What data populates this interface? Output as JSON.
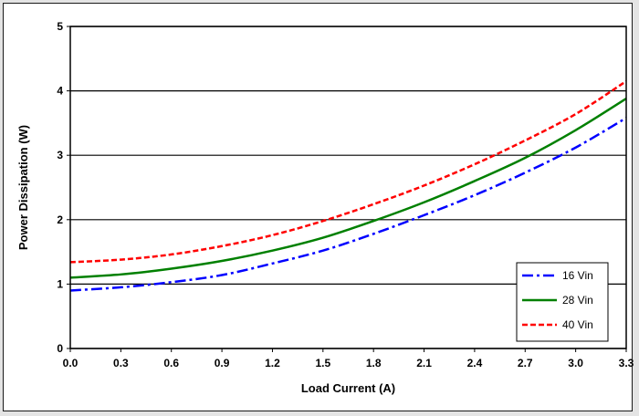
{
  "colors": {
    "series_16": "#0000ff",
    "series_28": "#008000",
    "series_40": "#ff0000",
    "gridline": "#000000",
    "background": "#ffffff"
  },
  "chart_data": {
    "type": "line",
    "title": "",
    "xlabel": "Load Current (A)",
    "ylabel": "Power Dissipation (W)",
    "xlim": [
      0.0,
      3.3
    ],
    "ylim": [
      0,
      5
    ],
    "x_ticks": [
      "0.0",
      "0.3",
      "0.6",
      "0.9",
      "1.2",
      "1.5",
      "1.8",
      "2.1",
      "2.4",
      "2.7",
      "3.0",
      "3.3"
    ],
    "y_ticks": [
      "0",
      "1",
      "2",
      "3",
      "4",
      "5"
    ],
    "grid": "horizontal major gridlines",
    "legend_position": "bottom-right",
    "x": [
      0.0,
      0.3,
      0.6,
      0.9,
      1.2,
      1.5,
      1.8,
      2.1,
      2.4,
      2.7,
      3.0,
      3.3
    ],
    "series": [
      {
        "name": "16 Vin",
        "line_style": "dash-dot",
        "color": "#0000ff",
        "values": [
          0.9,
          0.95,
          1.03,
          1.14,
          1.32,
          1.52,
          1.78,
          2.07,
          2.38,
          2.73,
          3.12,
          3.58
        ]
      },
      {
        "name": "28 Vin",
        "line_style": "solid",
        "color": "#008000",
        "values": [
          1.1,
          1.15,
          1.24,
          1.36,
          1.52,
          1.72,
          1.98,
          2.27,
          2.6,
          2.96,
          3.39,
          3.88
        ]
      },
      {
        "name": "40 Vin",
        "line_style": "dashed",
        "color": "#ff0000",
        "values": [
          1.34,
          1.38,
          1.46,
          1.59,
          1.76,
          1.98,
          2.24,
          2.53,
          2.86,
          3.23,
          3.64,
          4.15
        ]
      }
    ]
  }
}
